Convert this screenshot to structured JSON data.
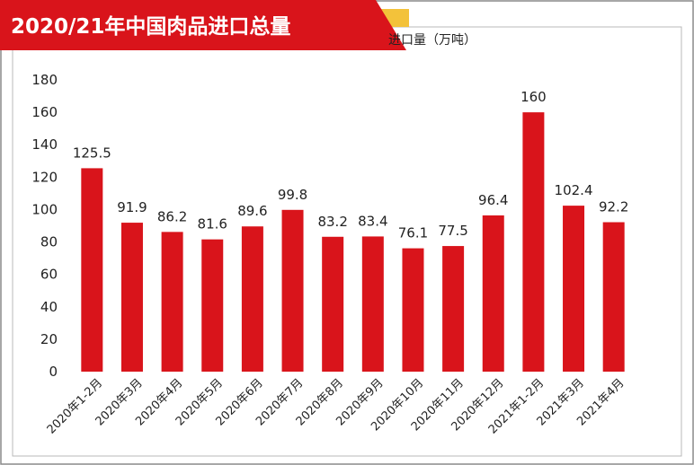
{
  "chart_data": {
    "type": "bar",
    "title": "2020/21年中国肉品进口总量",
    "legend": {
      "label": "进口量（万吨）",
      "placement": "top-center",
      "color": "#d9141b"
    },
    "categories": [
      "2020年1-2月",
      "2020年3月",
      "2020年4月",
      "2020年5月",
      "2020年6月",
      "2020年7月",
      "2020年8月",
      "2020年9月",
      "2020年10月",
      "2020年11月",
      "2020年12月",
      "2021年1-2月",
      "2021年3月",
      "2021年4月"
    ],
    "series": [
      {
        "name": "进口量（万吨）",
        "values": [
          125.5,
          91.9,
          86.2,
          81.6,
          89.6,
          99.8,
          83.2,
          83.4,
          76.1,
          77.5,
          96.4,
          160,
          102.4,
          92.2
        ],
        "labels": [
          "125.5",
          "91.9",
          "86.2",
          "81.6",
          "89.6",
          "99.8",
          "83.2",
          "83.4",
          "76.1",
          "77.5",
          "96.4",
          "160",
          "102.4",
          "92.2"
        ]
      }
    ],
    "ylim": [
      0,
      180
    ],
    "yticks": [
      0,
      20,
      40,
      60,
      80,
      100,
      120,
      140,
      160,
      180
    ],
    "grid": false,
    "colors": {
      "bar": "#d9141b",
      "title_bg": "#d9141b",
      "title_text": "#ffffff",
      "accent": "#f3c23a",
      "border": "#8a8a8a",
      "axis_text": "#222222"
    }
  }
}
